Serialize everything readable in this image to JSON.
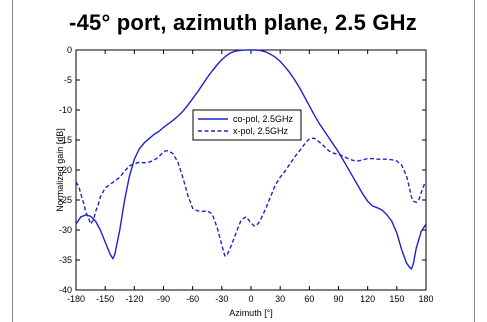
{
  "chart_data": {
    "type": "line",
    "title": "-45° port, azimuth plane, 2.5 GHz",
    "xlabel": "Azimuth [°]",
    "ylabel": "Normalized gain [dB]",
    "xlim": [
      -180,
      180
    ],
    "ylim": [
      -40,
      0
    ],
    "xticks": [
      -180,
      -150,
      -120,
      -90,
      -60,
      -30,
      0,
      30,
      60,
      90,
      120,
      150,
      180
    ],
    "yticks": [
      0,
      -5,
      -10,
      -15,
      -20,
      -25,
      -30,
      -35,
      -40
    ],
    "grid": false,
    "legend_position": "center",
    "series": [
      {
        "name": "co-pol, 2.5GHz",
        "style": "solid",
        "color": "#1f22cc",
        "x": [
          -180,
          -175,
          -170,
          -165,
          -160,
          -155,
          -150,
          -145,
          -142,
          -140,
          -135,
          -130,
          -125,
          -120,
          -115,
          -110,
          -105,
          -100,
          -95,
          -90,
          -85,
          -80,
          -75,
          -70,
          -65,
          -60,
          -55,
          -50,
          -45,
          -40,
          -35,
          -30,
          -25,
          -20,
          -15,
          -10,
          -5,
          0,
          5,
          10,
          15,
          20,
          25,
          30,
          35,
          40,
          45,
          50,
          55,
          60,
          65,
          70,
          75,
          80,
          85,
          90,
          95,
          100,
          105,
          110,
          115,
          120,
          125,
          130,
          135,
          140,
          145,
          150,
          155,
          160,
          163,
          165,
          167,
          170,
          175,
          180
        ],
        "y": [
          -29,
          -27.8,
          -27.5,
          -27.7,
          -28.5,
          -30,
          -32,
          -34,
          -34.8,
          -34,
          -30,
          -25,
          -21,
          -18.2,
          -16.5,
          -15.5,
          -14.8,
          -14.1,
          -13.6,
          -12.9,
          -12.3,
          -11.7,
          -11,
          -10.2,
          -9.2,
          -8.1,
          -7,
          -5.8,
          -4.6,
          -3.5,
          -2.5,
          -1.6,
          -0.9,
          -0.4,
          -0.15,
          -0.05,
          -0.01,
          0,
          0,
          -0.1,
          -0.3,
          -0.7,
          -1.2,
          -1.9,
          -2.8,
          -3.8,
          -5,
          -6.3,
          -7.8,
          -9.3,
          -10.8,
          -12.2,
          -13.4,
          -14.6,
          -15.8,
          -17,
          -18.4,
          -19.8,
          -21.2,
          -22.6,
          -24,
          -25.2,
          -26,
          -26.3,
          -26.7,
          -27.5,
          -28.6,
          -30.5,
          -33.3,
          -35.5,
          -36.2,
          -36.5,
          -35.6,
          -33,
          -30.3,
          -29
        ]
      },
      {
        "name": "x-pol, 2.5GHz",
        "style": "dashed",
        "color": "#1f22cc",
        "x": [
          -180,
          -177,
          -175,
          -172,
          -170,
          -167,
          -165,
          -162,
          -160,
          -157,
          -155,
          -150,
          -145,
          -140,
          -135,
          -130,
          -125,
          -120,
          -115,
          -110,
          -105,
          -100,
          -95,
          -90,
          -88,
          -85,
          -80,
          -75,
          -70,
          -65,
          -60,
          -55,
          -50,
          -45,
          -40,
          -35,
          -30,
          -27,
          -25,
          -20,
          -15,
          -10,
          -5,
          0,
          3,
          5,
          8,
          10,
          15,
          20,
          25,
          30,
          35,
          40,
          45,
          50,
          55,
          60,
          65,
          70,
          75,
          80,
          85,
          90,
          95,
          100,
          105,
          110,
          115,
          120,
          125,
          130,
          135,
          140,
          145,
          150,
          155,
          160,
          163,
          165,
          167,
          170,
          173,
          175,
          178,
          180
        ],
        "y": [
          -22,
          -22.8,
          -24,
          -25.6,
          -27,
          -28,
          -29,
          -28.3,
          -27,
          -25.7,
          -24.5,
          -23,
          -22.4,
          -21.8,
          -21.2,
          -20.2,
          -19.3,
          -19,
          -18.7,
          -18.8,
          -18.7,
          -18.4,
          -17.8,
          -17,
          -16.8,
          -16.8,
          -17.3,
          -18.8,
          -21.3,
          -24.2,
          -26.4,
          -26.8,
          -26.9,
          -26.8,
          -27.3,
          -29.5,
          -32.5,
          -34.3,
          -34.3,
          -32.5,
          -30.3,
          -28.3,
          -27.8,
          -28.8,
          -29.3,
          -29.3,
          -28.8,
          -28.2,
          -26.5,
          -24.5,
          -22.5,
          -21.2,
          -20.2,
          -19,
          -17.8,
          -16.8,
          -15.7,
          -14.8,
          -14.7,
          -15.3,
          -16,
          -16.8,
          -17.2,
          -17.4,
          -17.7,
          -18.1,
          -18.4,
          -18.5,
          -18.3,
          -18.1,
          -18.1,
          -18.2,
          -18.2,
          -18.2,
          -18.3,
          -18.5,
          -19.2,
          -21,
          -23,
          -24.5,
          -25.2,
          -25.4,
          -24.8,
          -23.8,
          -22.5,
          -22
        ]
      }
    ]
  }
}
